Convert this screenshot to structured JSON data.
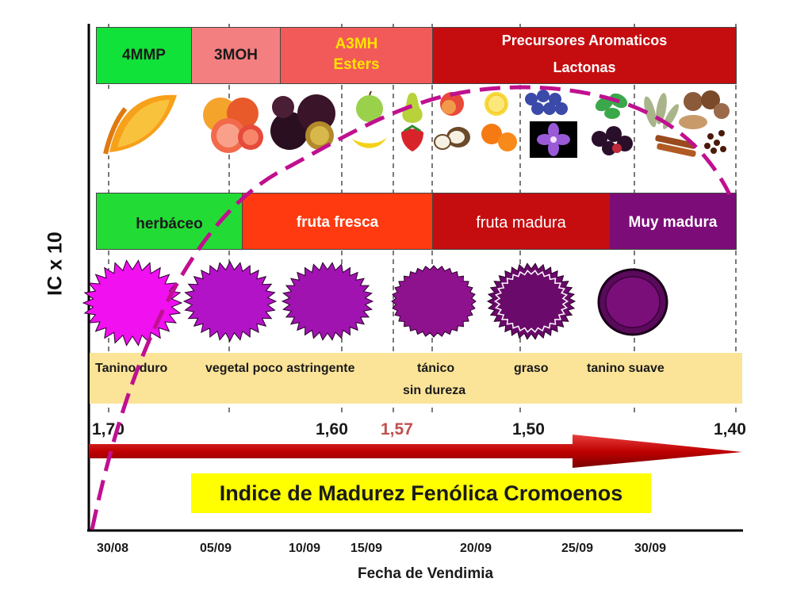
{
  "y_axis_label": "IC x 10",
  "x_axis_label": "Fecha de Vendimia",
  "compound_bands": [
    {
      "label": "4MMP",
      "color": "#11e23a"
    },
    {
      "label": "3MOH",
      "color": "#f47f80"
    },
    {
      "label_line1": "A3MH",
      "label_line2": "Esters",
      "color": "#f25a5a",
      "text_color": "#ffe400"
    },
    {
      "label_line1": "Precursores Aromaticos",
      "label_line2": "Lactonas",
      "color": "#c50d10",
      "text_color": "#ffffff"
    }
  ],
  "maturity_bands": [
    {
      "label": "herbáceo",
      "color": "#22dc35",
      "text_color": "#1a1a1a"
    },
    {
      "label": "fruta fresca",
      "color": "#ff3a10",
      "text_color": "#ffffff"
    },
    {
      "label": "fruta madura",
      "color": "#c50d10",
      "text_color": "#ffffff"
    },
    {
      "label": "Muy madura",
      "color": "#7c0d78",
      "text_color": "#ffffff"
    }
  ],
  "fruit_images": [
    "orange-slice",
    "grapefruit",
    "passion-fruit",
    "apple-banana",
    "pear-strawberry",
    "peach-coconut",
    "lemon-orange",
    "blueberries-violet",
    "mint-blackberries",
    "eucalyptus-cinnamon",
    "nutmeg-cloves"
  ],
  "tannin_bar": {
    "color": "#fbe498",
    "labels": [
      "Tanino duro",
      "vegetal poco astringente",
      "tánico",
      "graso",
      "tanino suave"
    ],
    "sub_label": "sin dureza"
  },
  "phenolic_index": {
    "values": [
      "1,70",
      "1,60",
      "1,57",
      "1,50",
      "1,40"
    ],
    "highlight": "1,57",
    "highlight_color": "#c0504d"
  },
  "banner": {
    "text": "Indice de Madurez Fenólica Cromoenos",
    "color": "#ffff00"
  },
  "dates": [
    "30/08",
    "05/09",
    "10/09",
    "15/09",
    "20/09",
    "25/09",
    "30/09"
  ],
  "colors": {
    "curve": "#c0108f",
    "arrow": "#c00000",
    "grape_1": "#f010f0",
    "grape_2": "#b313c6",
    "grape_3": "#a013b0",
    "grape_4": "#8e128e",
    "grape_5": "#6a0a6a",
    "grape_6": "#5a0a5a"
  }
}
